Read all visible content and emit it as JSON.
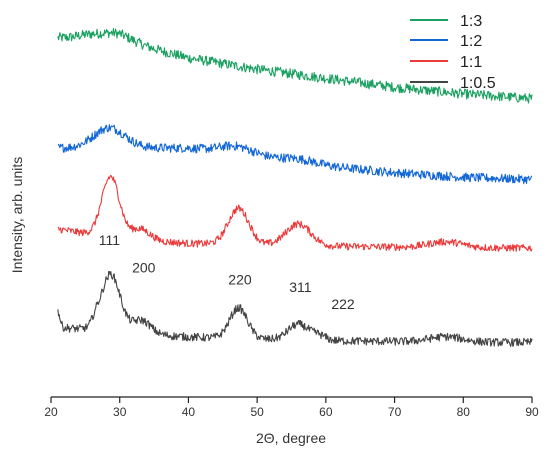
{
  "chart_data": {
    "type": "line",
    "xlabel": "2Θ, degree",
    "ylabel": "Intensity, arb. units",
    "xlim": [
      20,
      90
    ],
    "x_ticks": [
      20,
      30,
      40,
      50,
      60,
      70,
      80,
      90
    ],
    "y_ticks_shown": false,
    "grid": false,
    "legend_position": "top-right",
    "series": [
      {
        "name": "1:3",
        "color": "#1aa060",
        "baseline": [
          [
            21,
            5.05
          ],
          [
            30,
            5.0
          ],
          [
            40,
            4.6
          ],
          [
            50,
            4.35
          ],
          [
            60,
            4.15
          ],
          [
            70,
            3.95
          ],
          [
            80,
            3.8
          ],
          [
            90,
            3.7
          ]
        ],
        "peaks": [
          [
            29,
            0.15,
            2.5
          ],
          [
            25,
            0.05,
            1.5
          ]
        ],
        "noise": 0.11
      },
      {
        "name": "1:2",
        "color": "#1266d6",
        "baseline": [
          [
            21,
            2.6
          ],
          [
            30,
            2.6
          ],
          [
            40,
            2.6
          ],
          [
            50,
            2.4
          ],
          [
            60,
            2.2
          ],
          [
            70,
            2.05
          ],
          [
            80,
            1.95
          ],
          [
            90,
            1.9
          ]
        ],
        "peaks": [
          [
            28.5,
            0.45,
            2.3
          ],
          [
            47,
            0.18,
            2.5
          ],
          [
            56,
            0.08,
            2.5
          ]
        ],
        "noise": 0.1
      },
      {
        "name": "1:1",
        "color": "#ec3a3a",
        "baseline": [
          [
            21,
            0.8
          ],
          [
            30,
            0.58
          ],
          [
            40,
            0.48
          ],
          [
            50,
            0.45
          ],
          [
            60,
            0.42
          ],
          [
            70,
            0.4
          ],
          [
            80,
            0.38
          ],
          [
            90,
            0.38
          ]
        ],
        "peaks": [
          [
            28.7,
            1.35,
            1.3
          ],
          [
            33,
            0.25,
            1.4
          ],
          [
            47.3,
            0.8,
            1.5
          ],
          [
            56,
            0.48,
            1.8
          ],
          [
            77.5,
            0.13,
            2.5
          ]
        ],
        "noise": 0.08
      },
      {
        "name": "1:0.5",
        "color": "#444444",
        "baseline": [
          [
            21,
            -1.38
          ],
          [
            30,
            -1.5
          ],
          [
            40,
            -1.6
          ],
          [
            50,
            -1.65
          ],
          [
            60,
            -1.68
          ],
          [
            70,
            -1.7
          ],
          [
            80,
            -1.72
          ],
          [
            90,
            -1.72
          ]
        ],
        "peaks": [
          [
            28.7,
            1.28,
            1.4
          ],
          [
            33.2,
            0.3,
            1.3
          ],
          [
            47.3,
            0.68,
            1.3
          ],
          [
            56,
            0.35,
            1.5
          ],
          [
            59,
            0.1,
            1.0
          ],
          [
            77.5,
            0.12,
            2.5
          ],
          [
            21,
            0.35,
            0.3
          ],
          [
            26.5,
            0.12,
            0.5
          ]
        ],
        "noise": 0.09
      }
    ],
    "annotations": [
      {
        "text": "111",
        "x": 28.5,
        "y": 0.45
      },
      {
        "text": "200",
        "x": 33.5,
        "y": -0.17
      },
      {
        "text": "220",
        "x": 47.5,
        "y": -0.43
      },
      {
        "text": "311",
        "x": 56.3,
        "y": -0.6
      },
      {
        "text": "222",
        "x": 62.5,
        "y": -0.98
      }
    ]
  },
  "x_tick_labels": [
    "20",
    "30",
    "40",
    "50",
    "60",
    "70",
    "80",
    "90"
  ],
  "legend": [
    "1:3",
    "1:2",
    "1:1",
    "1:0.5"
  ]
}
